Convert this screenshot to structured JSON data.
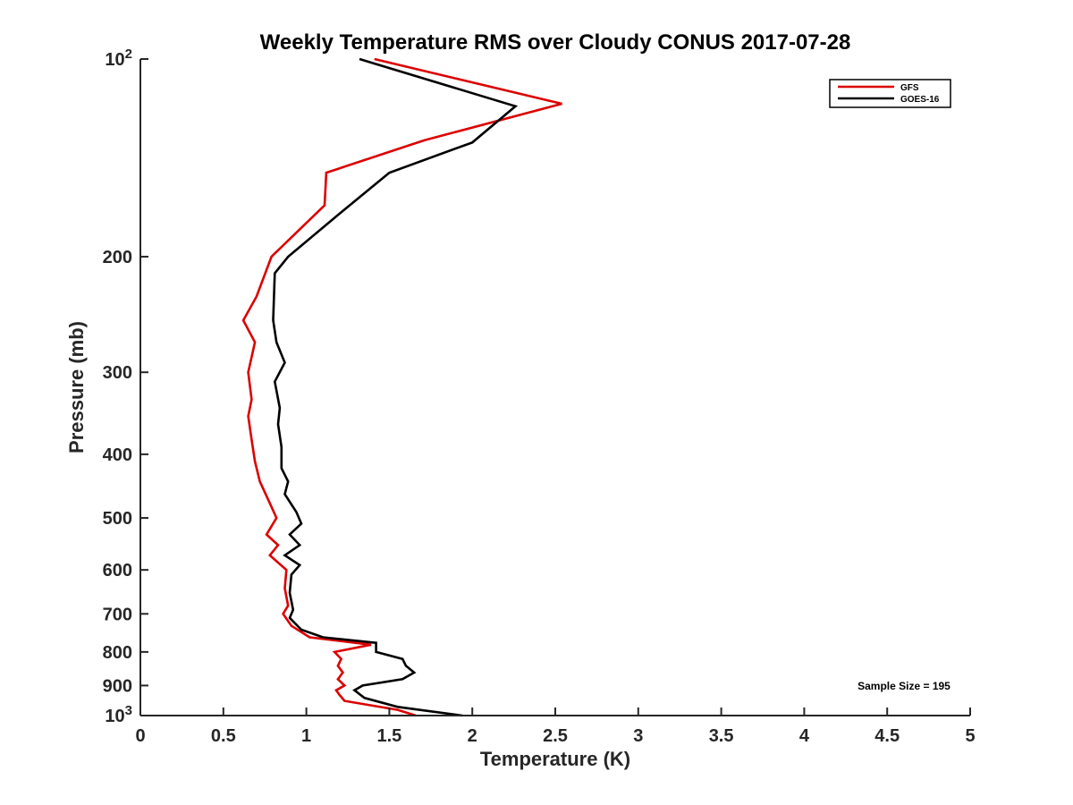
{
  "chart_data": {
    "type": "line",
    "title": "Weekly Temperature RMS over Cloudy CONUS 2017-07-28",
    "xlabel": "Temperature (K)",
    "ylabel": "Pressure (mb)",
    "xlim": [
      0,
      5
    ],
    "ylim": [
      100,
      1000
    ],
    "y_scale": "log",
    "y_reversed": true,
    "grid": false,
    "legend_position": "top-right",
    "x_ticks": [
      {
        "value": 0,
        "label": "0"
      },
      {
        "value": 0.5,
        "label": "0.5"
      },
      {
        "value": 1,
        "label": "1"
      },
      {
        "value": 1.5,
        "label": "1.5"
      },
      {
        "value": 2,
        "label": "2"
      },
      {
        "value": 2.5,
        "label": "2.5"
      },
      {
        "value": 3,
        "label": "3"
      },
      {
        "value": 3.5,
        "label": "3.5"
      },
      {
        "value": 4,
        "label": "4"
      },
      {
        "value": 4.5,
        "label": "4.5"
      },
      {
        "value": 5,
        "label": "5"
      }
    ],
    "y_ticks": [
      {
        "value": 100,
        "base": "10",
        "exp": "2"
      },
      {
        "value": 200,
        "label": "200"
      },
      {
        "value": 300,
        "label": "300"
      },
      {
        "value": 400,
        "label": "400"
      },
      {
        "value": 500,
        "label": "500"
      },
      {
        "value": 600,
        "label": "600"
      },
      {
        "value": 700,
        "label": "700"
      },
      {
        "value": 800,
        "label": "800"
      },
      {
        "value": 900,
        "label": "900"
      },
      {
        "value": 1000,
        "base": "10",
        "exp": "3"
      }
    ],
    "annotation": "Sample Size = 195",
    "series": [
      {
        "name": "GFS",
        "color": "#dd0000",
        "points": [
          [
            1.41,
            100
          ],
          [
            2.54,
            117
          ],
          [
            1.71,
            133
          ],
          [
            1.12,
            149
          ],
          [
            1.11,
            167
          ],
          [
            0.79,
            200
          ],
          [
            0.7,
            230
          ],
          [
            0.62,
            250
          ],
          [
            0.69,
            270
          ],
          [
            0.65,
            300
          ],
          [
            0.67,
            330
          ],
          [
            0.65,
            350
          ],
          [
            0.67,
            380
          ],
          [
            0.69,
            410
          ],
          [
            0.72,
            440
          ],
          [
            0.78,
            475
          ],
          [
            0.82,
            500
          ],
          [
            0.76,
            530
          ],
          [
            0.83,
            550
          ],
          [
            0.78,
            570
          ],
          [
            0.88,
            600
          ],
          [
            0.87,
            640
          ],
          [
            0.89,
            680
          ],
          [
            0.86,
            700
          ],
          [
            0.91,
            730
          ],
          [
            1.02,
            760
          ],
          [
            1.39,
            780
          ],
          [
            1.17,
            800
          ],
          [
            1.21,
            820
          ],
          [
            1.19,
            840
          ],
          [
            1.22,
            860
          ],
          [
            1.19,
            880
          ],
          [
            1.23,
            900
          ],
          [
            1.18,
            915
          ],
          [
            1.2,
            930
          ],
          [
            1.23,
            950
          ],
          [
            1.55,
            980
          ],
          [
            1.66,
            1000
          ]
        ]
      },
      {
        "name": "GOES-16",
        "color": "#000000",
        "points": [
          [
            1.32,
            100
          ],
          [
            2.26,
            118
          ],
          [
            2.0,
            134
          ],
          [
            1.5,
            149
          ],
          [
            1.2,
            172
          ],
          [
            0.89,
            200
          ],
          [
            0.81,
            212
          ],
          [
            0.8,
            250
          ],
          [
            0.82,
            270
          ],
          [
            0.87,
            290
          ],
          [
            0.81,
            310
          ],
          [
            0.84,
            340
          ],
          [
            0.83,
            360
          ],
          [
            0.85,
            390
          ],
          [
            0.85,
            420
          ],
          [
            0.89,
            440
          ],
          [
            0.87,
            460
          ],
          [
            0.94,
            490
          ],
          [
            0.97,
            510
          ],
          [
            0.9,
            530
          ],
          [
            0.96,
            550
          ],
          [
            0.87,
            570
          ],
          [
            0.96,
            590
          ],
          [
            0.91,
            610
          ],
          [
            0.9,
            650
          ],
          [
            0.92,
            690
          ],
          [
            0.9,
            710
          ],
          [
            0.97,
            740
          ],
          [
            1.1,
            760
          ],
          [
            1.42,
            775
          ],
          [
            1.42,
            800
          ],
          [
            1.58,
            820
          ],
          [
            1.6,
            840
          ],
          [
            1.65,
            860
          ],
          [
            1.58,
            880
          ],
          [
            1.34,
            900
          ],
          [
            1.29,
            915
          ],
          [
            1.35,
            940
          ],
          [
            1.55,
            970
          ],
          [
            1.94,
            1000
          ]
        ]
      }
    ]
  }
}
